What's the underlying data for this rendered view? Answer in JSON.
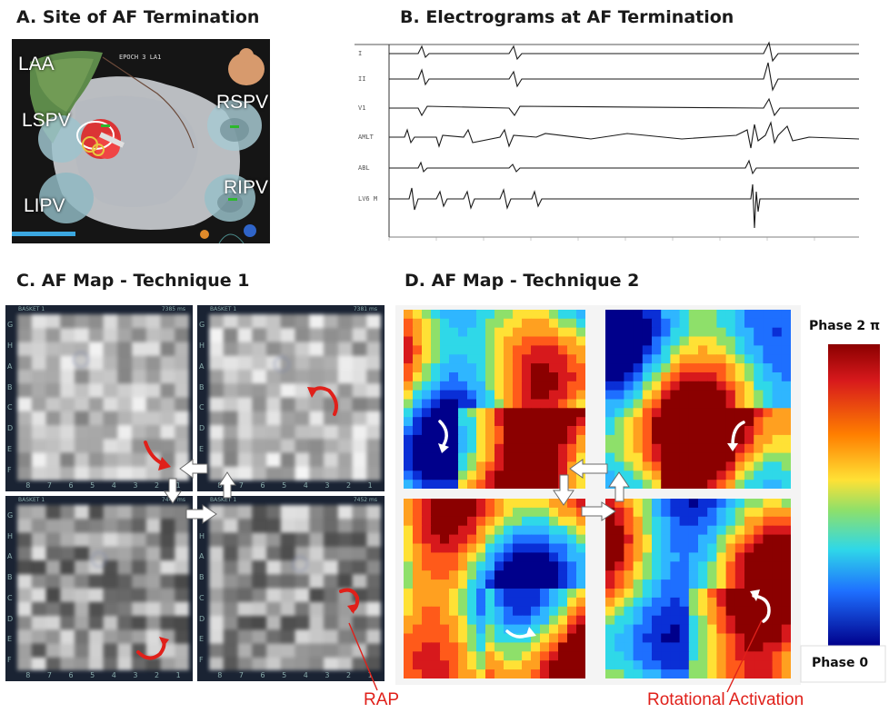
{
  "panel_a": {
    "title": "A. Site of AF Termination",
    "labels": {
      "laa": "LAA",
      "lspv": "LSPV",
      "lipv": "LIPV",
      "rspv": "RSPV",
      "ripv": "RIPV"
    },
    "map_text": "EPOCH 3 LA1"
  },
  "panel_b": {
    "title": "B. Electrograms at AF Termination",
    "channel_labels": [
      "I",
      "II",
      "V1",
      "AMLT",
      "ABL",
      "LV6 M"
    ]
  },
  "panel_c": {
    "title": "C. AF Map - Technique 1",
    "tile_header": "BASKET 1",
    "timestamps": [
      "7385 ms",
      "7381 ms",
      "7449 ms",
      "7452 ms"
    ],
    "row_labels": [
      "G",
      "H",
      "A",
      "B",
      "C",
      "D",
      "E",
      "F"
    ],
    "col_labels": [
      "8",
      "7",
      "6",
      "5",
      "4",
      "3",
      "2",
      "1"
    ],
    "annotation": "RAP"
  },
  "panel_d": {
    "title": "D. AF Map - Technique 2",
    "annotation": "Rotational Activation",
    "colorbar": {
      "top_label": "Phase 2 π",
      "bottom_label": "Phase 0"
    }
  },
  "colors": {
    "accent_red": "#e0201a",
    "arrow_white": "#ffffff"
  }
}
